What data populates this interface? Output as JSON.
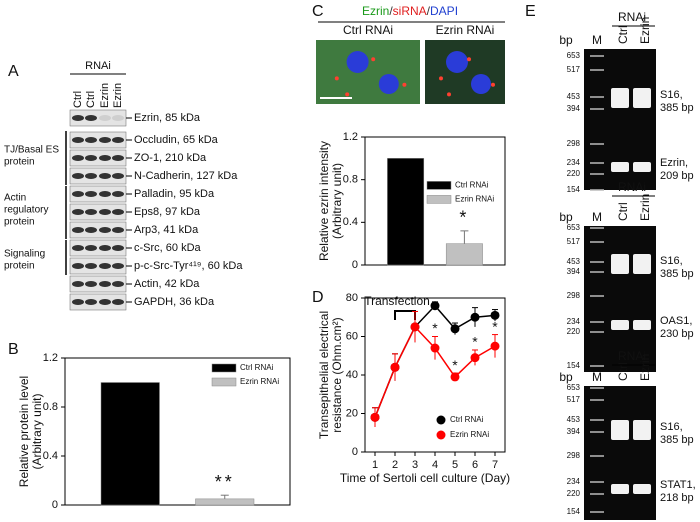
{
  "panel_labels": [
    "A",
    "B",
    "C",
    "D",
    "E"
  ],
  "blot": {
    "rnai": "RNAi",
    "lanes": [
      "Ctrl",
      "Ctrl",
      "Ezrin",
      "Ezrin"
    ],
    "proteins": [
      "Ezrin, 85 kDa",
      "Occludin, 65 kDa",
      "ZO-1, 210 kDa",
      "N-Cadherin, 127 kDa",
      "Palladin, 95 kDa",
      "Eps8, 97 kDa",
      "Arp3, 41 kDa",
      "c-Src, 60 kDa",
      "p-c-Src-Tyr⁴¹⁹, 60 kDa",
      "Actin, 42 kDa",
      "GAPDH, 36 kDa"
    ],
    "groups": [
      [
        "TJ/Basal ES",
        "protein"
      ],
      [
        "Actin",
        "regulatory",
        "protein"
      ],
      [
        "Signaling",
        "protein"
      ]
    ]
  },
  "micrograph": {
    "title_parts": [
      "Ezrin",
      "/",
      "siRNA",
      "/",
      "DAPI"
    ],
    "labels": [
      "Ctrl RNAi",
      "Ezrin RNAi"
    ]
  },
  "gels": {
    "rnai": "RNAi",
    "bp": "bp",
    "lanes": [
      "M",
      "Ctrl",
      "Ezrin"
    ],
    "markers": [
      "653",
      "517",
      "453",
      "394",
      "298",
      "234",
      "220",
      "154"
    ],
    "bands": [
      [
        [
          "S16,",
          "385 bp"
        ],
        [
          "Ezrin,",
          "209 bp"
        ]
      ],
      [
        [
          "S16,",
          "385 bp"
        ],
        [
          "OAS1,",
          "230 bp"
        ]
      ],
      [
        [
          "S16,",
          "385 bp"
        ],
        [
          "STAT1,",
          "218 bp"
        ]
      ]
    ]
  },
  "chart_data": [
    {
      "type": "bar",
      "ylabel": [
        "Relative protein level",
        "(Arbitrary unit)"
      ],
      "ylim": [
        0,
        1.2
      ],
      "yticks": [
        0,
        0.4,
        0.8,
        1.2
      ],
      "series": [
        {
          "name": "Ctrl RNAi",
          "color": "#000000",
          "values": [
            1
          ]
        },
        {
          "name": "Ezrin RNAi",
          "color": "#c0c0c0",
          "values": [
            0.05
          ],
          "errors": [
            0.03
          ]
        }
      ],
      "annotation": "**",
      "legend": "upper right"
    },
    {
      "type": "bar",
      "ylabel": [
        "Relative ezrin intensity",
        "(Arbitrary unit)"
      ],
      "ylim": [
        0,
        1.2
      ],
      "yticks": [
        0,
        0.4,
        0.8,
        1.2
      ],
      "series": [
        {
          "name": "Ctrl RNAi",
          "color": "#000000",
          "values": [
            1
          ]
        },
        {
          "name": "Ezrin RNAi",
          "color": "#c0c0c0",
          "values": [
            0.2
          ],
          "errors": [
            0.12
          ]
        }
      ],
      "annotation": "*",
      "legend": "upper right"
    },
    {
      "type": "line",
      "ylabel": [
        "Transepithelial electrical",
        "resistance (Ohm.cm²)"
      ],
      "xlabel": "Time of Sertoli cell culture (Day)",
      "x": [
        1,
        2,
        3,
        4,
        5,
        6,
        7
      ],
      "xlim": [
        0.5,
        7.5
      ],
      "xticks": [
        1,
        2,
        3,
        4,
        5,
        6,
        7
      ],
      "ylim": [
        0,
        80
      ],
      "yticks": [
        0,
        20,
        40,
        60,
        80
      ],
      "annotation": "Transfection",
      "transfection_days": [
        2,
        3
      ],
      "legend": "lower right",
      "series": [
        {
          "name": "Ctrl RNAi",
          "color": "#000000",
          "values": [
            18,
            44,
            65,
            76,
            64,
            70,
            71
          ],
          "errors": [
            5,
            7,
            8,
            2,
            3,
            5,
            3
          ]
        },
        {
          "name": "Ezrin RNAi",
          "color": "#ff0000",
          "values": [
            18,
            44,
            65,
            54,
            39,
            49,
            55
          ],
          "errors": [
            5,
            7,
            8,
            6,
            2,
            4,
            6
          ],
          "value_labels": [
            null,
            null,
            null,
            "*",
            "*",
            "*",
            "*"
          ]
        }
      ]
    }
  ]
}
